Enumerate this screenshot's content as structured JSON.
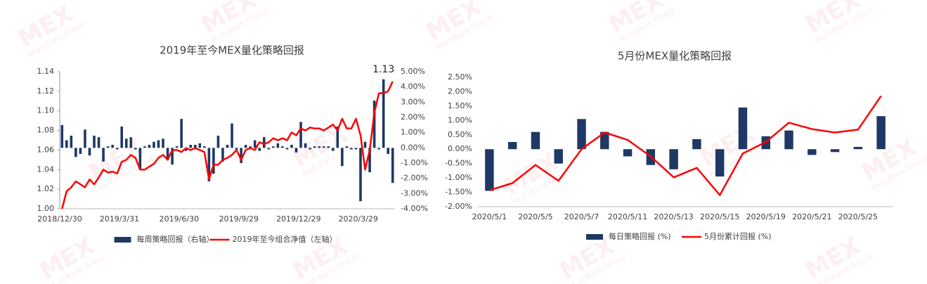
{
  "chart_data": [
    {
      "type": "bar",
      "title": "2019年至今MEX量化策略回报",
      "annotation": "1.13",
      "categories": [
        "2018/12/30",
        null,
        null,
        null,
        null,
        null,
        null,
        null,
        null,
        null,
        null,
        null,
        null,
        "2019/3/31",
        null,
        null,
        null,
        null,
        null,
        null,
        null,
        null,
        null,
        null,
        null,
        null,
        "2019/6/30",
        null,
        null,
        null,
        null,
        null,
        null,
        null,
        null,
        null,
        null,
        null,
        null,
        "2019/9/29",
        null,
        null,
        null,
        null,
        null,
        null,
        null,
        null,
        null,
        null,
        null,
        null,
        "2019/12/29",
        null,
        null,
        null,
        null,
        null,
        null,
        null,
        null,
        null,
        null,
        null,
        null,
        "2020/3/29",
        null,
        null,
        null,
        null,
        null,
        null,
        null
      ],
      "series": [
        {
          "name": "每周策略回报（右轴）",
          "type": "bar",
          "axis": "y2",
          "color": "#1f3864",
          "values": [
            1.5,
            0.5,
            0.8,
            -0.6,
            -0.4,
            1.2,
            -0.5,
            0.8,
            0.7,
            -0.9,
            0.1,
            0.2,
            -0.1,
            1.4,
            0.6,
            0.7,
            -0.1,
            -1.4,
            0.1,
            0.2,
            0.4,
            0.5,
            0.6,
            -0.8,
            -1.1,
            0.1,
            1.9,
            -0.2,
            0.2,
            0.2,
            0.3,
            0.1,
            -2.2,
            -1.7,
            0.8,
            -0.9,
            0.2,
            1.6,
            -0.1,
            -1.0,
            0.2,
            0.1,
            0.5,
            -0.2,
            0.7,
            -0.1,
            0.1,
            0.3,
            0.1,
            -0.1,
            0.2,
            -0.3,
            1.7,
            0.3,
            -0.1,
            0.1,
            0.1,
            0.1,
            0.1,
            -0.2,
            1.4,
            -1.2,
            0.1,
            -0.1,
            -0.1,
            -3.5,
            0.4,
            -1.6,
            3.1,
            -0.1,
            4.5,
            -0.4,
            -2.3
          ]
        },
        {
          "name": "2019年至今组合净值（左轴）",
          "type": "line",
          "color": "#ff0000",
          "values": [
            1.0,
            1.018,
            1.022,
            1.028,
            1.025,
            1.022,
            1.03,
            1.025,
            1.032,
            1.04,
            1.037,
            1.038,
            1.036,
            1.048,
            1.05,
            1.055,
            1.052,
            1.04,
            1.04,
            1.043,
            1.046,
            1.052,
            1.055,
            1.05,
            1.06,
            1.06,
            1.058,
            1.062,
            1.06,
            1.062,
            1.06,
            1.058,
            1.03,
            1.045,
            1.045,
            1.05,
            1.052,
            1.055,
            1.06,
            1.05,
            1.06,
            1.062,
            1.06,
            1.068,
            1.066,
            1.068,
            1.072,
            1.07,
            1.072,
            1.07,
            1.078,
            1.075,
            1.082,
            1.08,
            1.083,
            1.082,
            1.082,
            1.08,
            1.083,
            1.086,
            1.08,
            1.092,
            1.082,
            1.082,
            1.092,
            1.075,
            1.04,
            1.06,
            1.098,
            1.118,
            1.118,
            1.12,
            1.13
          ]
        }
      ],
      "ylim": [
        1.0,
        1.14
      ],
      "yticks": [
        {
          "value": 1.0,
          "label": "1.00"
        },
        {
          "value": 1.02,
          "label": "1.02"
        },
        {
          "value": 1.04,
          "label": "1.04"
        },
        {
          "value": 1.06,
          "label": "1.06"
        },
        {
          "value": 1.08,
          "label": "1.08"
        },
        {
          "value": 1.1,
          "label": "1.10"
        },
        {
          "value": 1.12,
          "label": "1.12"
        },
        {
          "value": 1.14,
          "label": "1.14"
        }
      ],
      "y2lim": [
        -4,
        5
      ],
      "y2ticks": [
        {
          "value": -4,
          "label": "-4.00%"
        },
        {
          "value": -3,
          "label": "-3.00%"
        },
        {
          "value": -2,
          "label": "-2.00%"
        },
        {
          "value": -1,
          "label": "-1.00%"
        },
        {
          "value": 0,
          "label": "0.00%"
        },
        {
          "value": 1,
          "label": "1.00%"
        },
        {
          "value": 2,
          "label": "2.00%"
        },
        {
          "value": 3,
          "label": "3.00%"
        },
        {
          "value": 4,
          "label": "4.00%"
        },
        {
          "value": 5,
          "label": "5.00%"
        }
      ],
      "grid": false,
      "legend": "bottom"
    },
    {
      "type": "bar",
      "title": "5月份MEX量化策略回报",
      "categories": [
        "2020/5/1",
        null,
        "2020/5/5",
        null,
        "2020/5/7",
        null,
        "2020/5/11",
        null,
        "2020/5/13",
        null,
        "2020/5/15",
        null,
        "2020/5/19",
        null,
        "2020/5/21",
        null,
        "2020/5/25",
        null
      ],
      "series": [
        {
          "name": "每日策略回报 (%)",
          "type": "bar",
          "color": "#1f3864",
          "values": [
            -1.45,
            0.25,
            0.6,
            -0.5,
            1.05,
            0.6,
            -0.25,
            -0.55,
            -0.7,
            0.35,
            -0.95,
            1.45,
            0.45,
            0.65,
            -0.2,
            -0.1,
            0.08,
            1.15
          ]
        },
        {
          "name": "5月份累计回报 (%)",
          "type": "line",
          "color": "#ff0000",
          "values": [
            -1.43,
            -1.18,
            -0.55,
            -1.1,
            0.0,
            0.58,
            0.32,
            -0.25,
            -0.98,
            -0.65,
            -1.6,
            -0.15,
            0.25,
            0.92,
            0.7,
            0.58,
            0.68,
            1.85
          ]
        }
      ],
      "ylim": [
        -2,
        2.5
      ],
      "yticks": [
        {
          "value": -2,
          "label": "-2.00%"
        },
        {
          "value": -1.5,
          "label": "-1.50%"
        },
        {
          "value": -1,
          "label": "-1.00%"
        },
        {
          "value": -0.5,
          "label": "-0.50%"
        },
        {
          "value": 0,
          "label": "0.00%"
        },
        {
          "value": 0.5,
          "label": "0.50%"
        },
        {
          "value": 1,
          "label": "1.00%"
        },
        {
          "value": 1.5,
          "label": "1.50%"
        },
        {
          "value": 2,
          "label": "2.00%"
        },
        {
          "value": 2.5,
          "label": "2.50%"
        }
      ],
      "grid": false,
      "legend": "bottom"
    }
  ],
  "watermark": {
    "logo": "MEX",
    "text": "MultiBank Group"
  }
}
